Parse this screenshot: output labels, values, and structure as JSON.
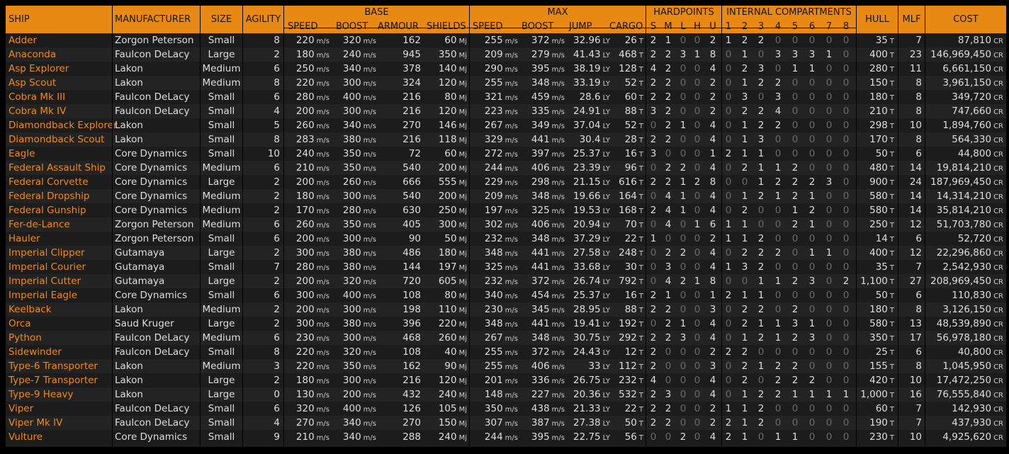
{
  "headers": {
    "ship": "SHIP",
    "manufacturer": "MANUFACTURER",
    "size": "SIZE",
    "agility": "AGILITY",
    "base": "BASE",
    "base_speed": "SPEED",
    "base_boost": "BOOST",
    "armour": "ARMOUR",
    "shields": "SHIELDS",
    "max": "MAX",
    "max_speed": "SPEED",
    "max_boost": "BOOST",
    "jump": "JUMP",
    "cargo": "CARGO",
    "hardpoints": "HARDPOINTS",
    "hp_labels": [
      "S",
      "M",
      "L",
      "H",
      "U"
    ],
    "internal": "INTERNAL COMPARTMENTS",
    "ic_labels": [
      "1",
      "2",
      "3",
      "4",
      "5",
      "6",
      "7",
      "8"
    ],
    "hull": "HULL",
    "mlf": "MLF",
    "cost": "COST"
  },
  "units": {
    "speed": "m/s",
    "shield": "Mj",
    "jump": "LY",
    "mass": "T",
    "credits": "CR"
  },
  "ships": [
    {
      "name": "Adder",
      "mfr": "Zorgon Peterson",
      "size": "Small",
      "agility": "8",
      "bspeed": "220",
      "bboost": "320",
      "armour": "162",
      "shields": "60",
      "mspeed": "255",
      "mboost": "372",
      "jump": "32.96",
      "cargo": "26",
      "hp": [
        "2",
        "1",
        "0",
        "0",
        "2"
      ],
      "ic": [
        "1",
        "2",
        "2",
        "0",
        "0",
        "0",
        "0",
        "0"
      ],
      "hull": "35",
      "mlf": "7",
      "cost": "87,810"
    },
    {
      "name": "Anaconda",
      "mfr": "Faulcon DeLacy",
      "size": "Large",
      "agility": "2",
      "bspeed": "180",
      "bboost": "240",
      "armour": "945",
      "shields": "350",
      "mspeed": "209",
      "mboost": "279",
      "jump": "41.43",
      "cargo": "468",
      "hp": [
        "2",
        "2",
        "3",
        "1",
        "8"
      ],
      "ic": [
        "0",
        "1",
        "0",
        "3",
        "3",
        "3",
        "1",
        "0"
      ],
      "hull": "400",
      "mlf": "23",
      "cost": "146,969,450"
    },
    {
      "name": "Asp Explorer",
      "mfr": "Lakon",
      "size": "Medium",
      "agility": "6",
      "bspeed": "250",
      "bboost": "340",
      "armour": "378",
      "shields": "140",
      "mspeed": "290",
      "mboost": "395",
      "jump": "38.19",
      "cargo": "128",
      "hp": [
        "4",
        "2",
        "0",
        "0",
        "4"
      ],
      "ic": [
        "0",
        "2",
        "3",
        "0",
        "1",
        "1",
        "0",
        "0"
      ],
      "hull": "280",
      "mlf": "11",
      "cost": "6,661,150"
    },
    {
      "name": "Asp Scout",
      "mfr": "Lakon",
      "size": "Medium",
      "agility": "8",
      "bspeed": "220",
      "bboost": "300",
      "armour": "324",
      "shields": "120",
      "mspeed": "255",
      "mboost": "348",
      "jump": "33.19",
      "cargo": "52",
      "hp": [
        "2",
        "2",
        "0",
        "0",
        "2"
      ],
      "ic": [
        "0",
        "1",
        "2",
        "2",
        "0",
        "0",
        "0",
        "0"
      ],
      "hull": "150",
      "mlf": "8",
      "cost": "3,961,150"
    },
    {
      "name": "Cobra Mk III",
      "mfr": "Faulcon DeLacy",
      "size": "Small",
      "agility": "6",
      "bspeed": "280",
      "bboost": "400",
      "armour": "216",
      "shields": "80",
      "mspeed": "321",
      "mboost": "459",
      "jump": "28.6",
      "cargo": "60",
      "hp": [
        "2",
        "2",
        "0",
        "0",
        "2"
      ],
      "ic": [
        "0",
        "3",
        "0",
        "3",
        "0",
        "0",
        "0",
        "0"
      ],
      "hull": "180",
      "mlf": "8",
      "cost": "349,720"
    },
    {
      "name": "Cobra Mk IV",
      "mfr": "Faulcon DeLacy",
      "size": "Small",
      "agility": "4",
      "bspeed": "200",
      "bboost": "300",
      "armour": "216",
      "shields": "120",
      "mspeed": "223",
      "mboost": "335",
      "jump": "24.91",
      "cargo": "88",
      "hp": [
        "3",
        "2",
        "0",
        "0",
        "2"
      ],
      "ic": [
        "0",
        "2",
        "2",
        "4",
        "0",
        "0",
        "0",
        "0"
      ],
      "hull": "210",
      "mlf": "8",
      "cost": "747,660"
    },
    {
      "name": "Diamondback Explorer",
      "mfr": "Lakon",
      "size": "Small",
      "agility": "5",
      "bspeed": "260",
      "bboost": "340",
      "armour": "270",
      "shields": "146",
      "mspeed": "267",
      "mboost": "349",
      "jump": "37.04",
      "cargo": "52",
      "hp": [
        "0",
        "2",
        "1",
        "0",
        "4"
      ],
      "ic": [
        "0",
        "1",
        "2",
        "2",
        "0",
        "0",
        "0",
        "0"
      ],
      "hull": "298",
      "mlf": "10",
      "cost": "1,894,760"
    },
    {
      "name": "Diamondback Scout",
      "mfr": "Lakon",
      "size": "Small",
      "agility": "8",
      "bspeed": "283",
      "bboost": "380",
      "armour": "216",
      "shields": "118",
      "mspeed": "329",
      "mboost": "441",
      "jump": "30.4",
      "cargo": "28",
      "hp": [
        "2",
        "2",
        "0",
        "0",
        "4"
      ],
      "ic": [
        "0",
        "1",
        "3",
        "0",
        "0",
        "0",
        "0",
        "0"
      ],
      "hull": "170",
      "mlf": "8",
      "cost": "564,330"
    },
    {
      "name": "Eagle",
      "mfr": "Core Dynamics",
      "size": "Small",
      "agility": "10",
      "bspeed": "240",
      "bboost": "350",
      "armour": "72",
      "shields": "60",
      "mspeed": "272",
      "mboost": "397",
      "jump": "25.37",
      "cargo": "16",
      "hp": [
        "3",
        "0",
        "0",
        "0",
        "1"
      ],
      "ic": [
        "2",
        "1",
        "1",
        "0",
        "0",
        "0",
        "0",
        "0"
      ],
      "hull": "50",
      "mlf": "6",
      "cost": "44,800"
    },
    {
      "name": "Federal Assault Ship",
      "mfr": "Core Dynamics",
      "size": "Medium",
      "agility": "6",
      "bspeed": "210",
      "bboost": "350",
      "armour": "540",
      "shields": "200",
      "mspeed": "244",
      "mboost": "406",
      "jump": "23.39",
      "cargo": "96",
      "hp": [
        "0",
        "2",
        "2",
        "0",
        "4"
      ],
      "ic": [
        "0",
        "2",
        "1",
        "1",
        "2",
        "0",
        "0",
        "0"
      ],
      "hull": "480",
      "mlf": "14",
      "cost": "19,814,210"
    },
    {
      "name": "Federal Corvette",
      "mfr": "Core Dynamics",
      "size": "Large",
      "agility": "2",
      "bspeed": "200",
      "bboost": "260",
      "armour": "666",
      "shields": "555",
      "mspeed": "229",
      "mboost": "298",
      "jump": "21.15",
      "cargo": "616",
      "hp": [
        "2",
        "2",
        "1",
        "2",
        "8"
      ],
      "ic": [
        "0",
        "0",
        "1",
        "2",
        "2",
        "2",
        "3",
        "0"
      ],
      "hull": "900",
      "mlf": "24",
      "cost": "187,969,450"
    },
    {
      "name": "Federal Dropship",
      "mfr": "Core Dynamics",
      "size": "Medium",
      "agility": "2",
      "bspeed": "180",
      "bboost": "300",
      "armour": "540",
      "shields": "200",
      "mspeed": "209",
      "mboost": "348",
      "jump": "19.66",
      "cargo": "164",
      "hp": [
        "0",
        "4",
        "1",
        "0",
        "4"
      ],
      "ic": [
        "0",
        "1",
        "2",
        "1",
        "2",
        "1",
        "0",
        "0"
      ],
      "hull": "580",
      "mlf": "14",
      "cost": "14,314,210"
    },
    {
      "name": "Federal Gunship",
      "mfr": "Core Dynamics",
      "size": "Medium",
      "agility": "2",
      "bspeed": "170",
      "bboost": "280",
      "armour": "630",
      "shields": "250",
      "mspeed": "197",
      "mboost": "325",
      "jump": "19.53",
      "cargo": "168",
      "hp": [
        "2",
        "4",
        "1",
        "0",
        "4"
      ],
      "ic": [
        "0",
        "2",
        "0",
        "0",
        "1",
        "2",
        "0",
        "0"
      ],
      "hull": "580",
      "mlf": "14",
      "cost": "35,814,210"
    },
    {
      "name": "Fer-de-Lance",
      "mfr": "Zorgon Peterson",
      "size": "Medium",
      "agility": "6",
      "bspeed": "260",
      "bboost": "350",
      "armour": "405",
      "shields": "300",
      "mspeed": "302",
      "mboost": "406",
      "jump": "20.94",
      "cargo": "70",
      "hp": [
        "0",
        "4",
        "0",
        "1",
        "6"
      ],
      "ic": [
        "1",
        "1",
        "0",
        "0",
        "2",
        "1",
        "0",
        "0"
      ],
      "hull": "250",
      "mlf": "12",
      "cost": "51,703,780"
    },
    {
      "name": "Hauler",
      "mfr": "Zorgon Peterson",
      "size": "Small",
      "agility": "6",
      "bspeed": "200",
      "bboost": "300",
      "armour": "90",
      "shields": "50",
      "mspeed": "232",
      "mboost": "348",
      "jump": "37.29",
      "cargo": "22",
      "hp": [
        "1",
        "0",
        "0",
        "0",
        "2"
      ],
      "ic": [
        "1",
        "1",
        "2",
        "0",
        "0",
        "0",
        "0",
        "0"
      ],
      "hull": "14",
      "mlf": "6",
      "cost": "52,720"
    },
    {
      "name": "Imperial Clipper",
      "mfr": "Gutamaya",
      "size": "Large",
      "agility": "2",
      "bspeed": "300",
      "bboost": "380",
      "armour": "486",
      "shields": "180",
      "mspeed": "348",
      "mboost": "441",
      "jump": "27.58",
      "cargo": "248",
      "hp": [
        "0",
        "2",
        "2",
        "0",
        "4"
      ],
      "ic": [
        "0",
        "2",
        "2",
        "2",
        "0",
        "1",
        "1",
        "0"
      ],
      "hull": "400",
      "mlf": "12",
      "cost": "22,296,860"
    },
    {
      "name": "Imperial Courier",
      "mfr": "Gutamaya",
      "size": "Small",
      "agility": "7",
      "bspeed": "280",
      "bboost": "380",
      "armour": "144",
      "shields": "197",
      "mspeed": "325",
      "mboost": "441",
      "jump": "33.68",
      "cargo": "30",
      "hp": [
        "0",
        "3",
        "0",
        "0",
        "4"
      ],
      "ic": [
        "1",
        "3",
        "2",
        "0",
        "0",
        "0",
        "0",
        "0"
      ],
      "hull": "35",
      "mlf": "7",
      "cost": "2,542,930"
    },
    {
      "name": "Imperial Cutter",
      "mfr": "Gutamaya",
      "size": "Large",
      "agility": "2",
      "bspeed": "200",
      "bboost": "320",
      "armour": "720",
      "shields": "605",
      "mspeed": "232",
      "mboost": "372",
      "jump": "26.74",
      "cargo": "792",
      "hp": [
        "0",
        "4",
        "2",
        "1",
        "8"
      ],
      "ic": [
        "0",
        "0",
        "1",
        "1",
        "2",
        "3",
        "0",
        "2"
      ],
      "hull": "1,100",
      "mlf": "27",
      "cost": "208,969,450"
    },
    {
      "name": "Imperial Eagle",
      "mfr": "Core Dynamics",
      "size": "Small",
      "agility": "6",
      "bspeed": "300",
      "bboost": "400",
      "armour": "108",
      "shields": "80",
      "mspeed": "340",
      "mboost": "454",
      "jump": "25.37",
      "cargo": "16",
      "hp": [
        "2",
        "1",
        "0",
        "0",
        "1"
      ],
      "ic": [
        "2",
        "1",
        "1",
        "0",
        "0",
        "0",
        "0",
        "0"
      ],
      "hull": "50",
      "mlf": "6",
      "cost": "110,830"
    },
    {
      "name": "Keelback",
      "mfr": "Lakon",
      "size": "Medium",
      "agility": "2",
      "bspeed": "200",
      "bboost": "300",
      "armour": "198",
      "shields": "110",
      "mspeed": "230",
      "mboost": "345",
      "jump": "28.95",
      "cargo": "88",
      "hp": [
        "2",
        "2",
        "0",
        "0",
        "3"
      ],
      "ic": [
        "0",
        "2",
        "2",
        "0",
        "2",
        "0",
        "0",
        "0"
      ],
      "hull": "180",
      "mlf": "8",
      "cost": "3,126,150"
    },
    {
      "name": "Orca",
      "mfr": "Saud Kruger",
      "size": "Large",
      "agility": "2",
      "bspeed": "300",
      "bboost": "380",
      "armour": "396",
      "shields": "220",
      "mspeed": "348",
      "mboost": "441",
      "jump": "19.41",
      "cargo": "192",
      "hp": [
        "0",
        "2",
        "1",
        "0",
        "4"
      ],
      "ic": [
        "0",
        "2",
        "1",
        "1",
        "3",
        "1",
        "0",
        "0"
      ],
      "hull": "580",
      "mlf": "13",
      "cost": "48,539,890"
    },
    {
      "name": "Python",
      "mfr": "Faulcon DeLacy",
      "size": "Medium",
      "agility": "6",
      "bspeed": "230",
      "bboost": "300",
      "armour": "468",
      "shields": "260",
      "mspeed": "267",
      "mboost": "348",
      "jump": "30.75",
      "cargo": "292",
      "hp": [
        "2",
        "2",
        "3",
        "0",
        "4"
      ],
      "ic": [
        "0",
        "1",
        "2",
        "1",
        "2",
        "3",
        "0",
        "0"
      ],
      "hull": "350",
      "mlf": "17",
      "cost": "56,978,180"
    },
    {
      "name": "Sidewinder",
      "mfr": "Faulcon DeLacy",
      "size": "Small",
      "agility": "8",
      "bspeed": "220",
      "bboost": "320",
      "armour": "108",
      "shields": "40",
      "mspeed": "255",
      "mboost": "372",
      "jump": "24.43",
      "cargo": "12",
      "hp": [
        "2",
        "0",
        "0",
        "0",
        "2"
      ],
      "ic": [
        "2",
        "2",
        "0",
        "0",
        "0",
        "0",
        "0",
        "0"
      ],
      "hull": "25",
      "mlf": "6",
      "cost": "40,800"
    },
    {
      "name": "Type-6 Transporter",
      "mfr": "Lakon",
      "size": "Medium",
      "agility": "3",
      "bspeed": "220",
      "bboost": "350",
      "armour": "162",
      "shields": "90",
      "mspeed": "255",
      "mboost": "406",
      "jump": "33",
      "cargo": "112",
      "hp": [
        "2",
        "0",
        "0",
        "0",
        "3"
      ],
      "ic": [
        "0",
        "2",
        "1",
        "2",
        "2",
        "0",
        "0",
        "0"
      ],
      "hull": "155",
      "mlf": "8",
      "cost": "1,045,950"
    },
    {
      "name": "Type-7 Transporter",
      "mfr": "Lakon",
      "size": "Large",
      "agility": "2",
      "bspeed": "180",
      "bboost": "300",
      "armour": "216",
      "shields": "120",
      "mspeed": "201",
      "mboost": "336",
      "jump": "26.75",
      "cargo": "232",
      "hp": [
        "4",
        "0",
        "0",
        "0",
        "4"
      ],
      "ic": [
        "0",
        "2",
        "0",
        "2",
        "2",
        "2",
        "0",
        "0"
      ],
      "hull": "420",
      "mlf": "10",
      "cost": "17,472,250"
    },
    {
      "name": "Type-9 Heavy",
      "mfr": "Lakon",
      "size": "Large",
      "agility": "0",
      "bspeed": "130",
      "bboost": "200",
      "armour": "432",
      "shields": "240",
      "mspeed": "148",
      "mboost": "227",
      "jump": "20.36",
      "cargo": "532",
      "hp": [
        "2",
        "3",
        "0",
        "0",
        "4"
      ],
      "ic": [
        "0",
        "1",
        "2",
        "2",
        "1",
        "1",
        "1",
        "1"
      ],
      "hull": "1,000",
      "mlf": "16",
      "cost": "76,555,840"
    },
    {
      "name": "Viper",
      "mfr": "Faulcon DeLacy",
      "size": "Small",
      "agility": "6",
      "bspeed": "320",
      "bboost": "400",
      "armour": "126",
      "shields": "105",
      "mspeed": "350",
      "mboost": "438",
      "jump": "21.33",
      "cargo": "22",
      "hp": [
        "2",
        "2",
        "0",
        "0",
        "2"
      ],
      "ic": [
        "1",
        "1",
        "2",
        "0",
        "0",
        "0",
        "0",
        "0"
      ],
      "hull": "60",
      "mlf": "7",
      "cost": "142,930"
    },
    {
      "name": "Viper Mk IV",
      "mfr": "Faulcon DeLacy",
      "size": "Small",
      "agility": "4",
      "bspeed": "270",
      "bboost": "340",
      "armour": "270",
      "shields": "150",
      "mspeed": "307",
      "mboost": "387",
      "jump": "27.38",
      "cargo": "50",
      "hp": [
        "2",
        "2",
        "0",
        "0",
        "2"
      ],
      "ic": [
        "2",
        "1",
        "2",
        "0",
        "0",
        "0",
        "0",
        "0"
      ],
      "hull": "190",
      "mlf": "7",
      "cost": "437,930"
    },
    {
      "name": "Vulture",
      "mfr": "Core Dynamics",
      "size": "Small",
      "agility": "9",
      "bspeed": "210",
      "bboost": "340",
      "armour": "288",
      "shields": "240",
      "mspeed": "244",
      "mboost": "395",
      "jump": "22.75",
      "cargo": "56",
      "hp": [
        "0",
        "0",
        "2",
        "0",
        "4"
      ],
      "ic": [
        "2",
        "1",
        "0",
        "1",
        "1",
        "0",
        "0",
        "0"
      ],
      "hull": "230",
      "mlf": "10",
      "cost": "4,925,620"
    }
  ]
}
